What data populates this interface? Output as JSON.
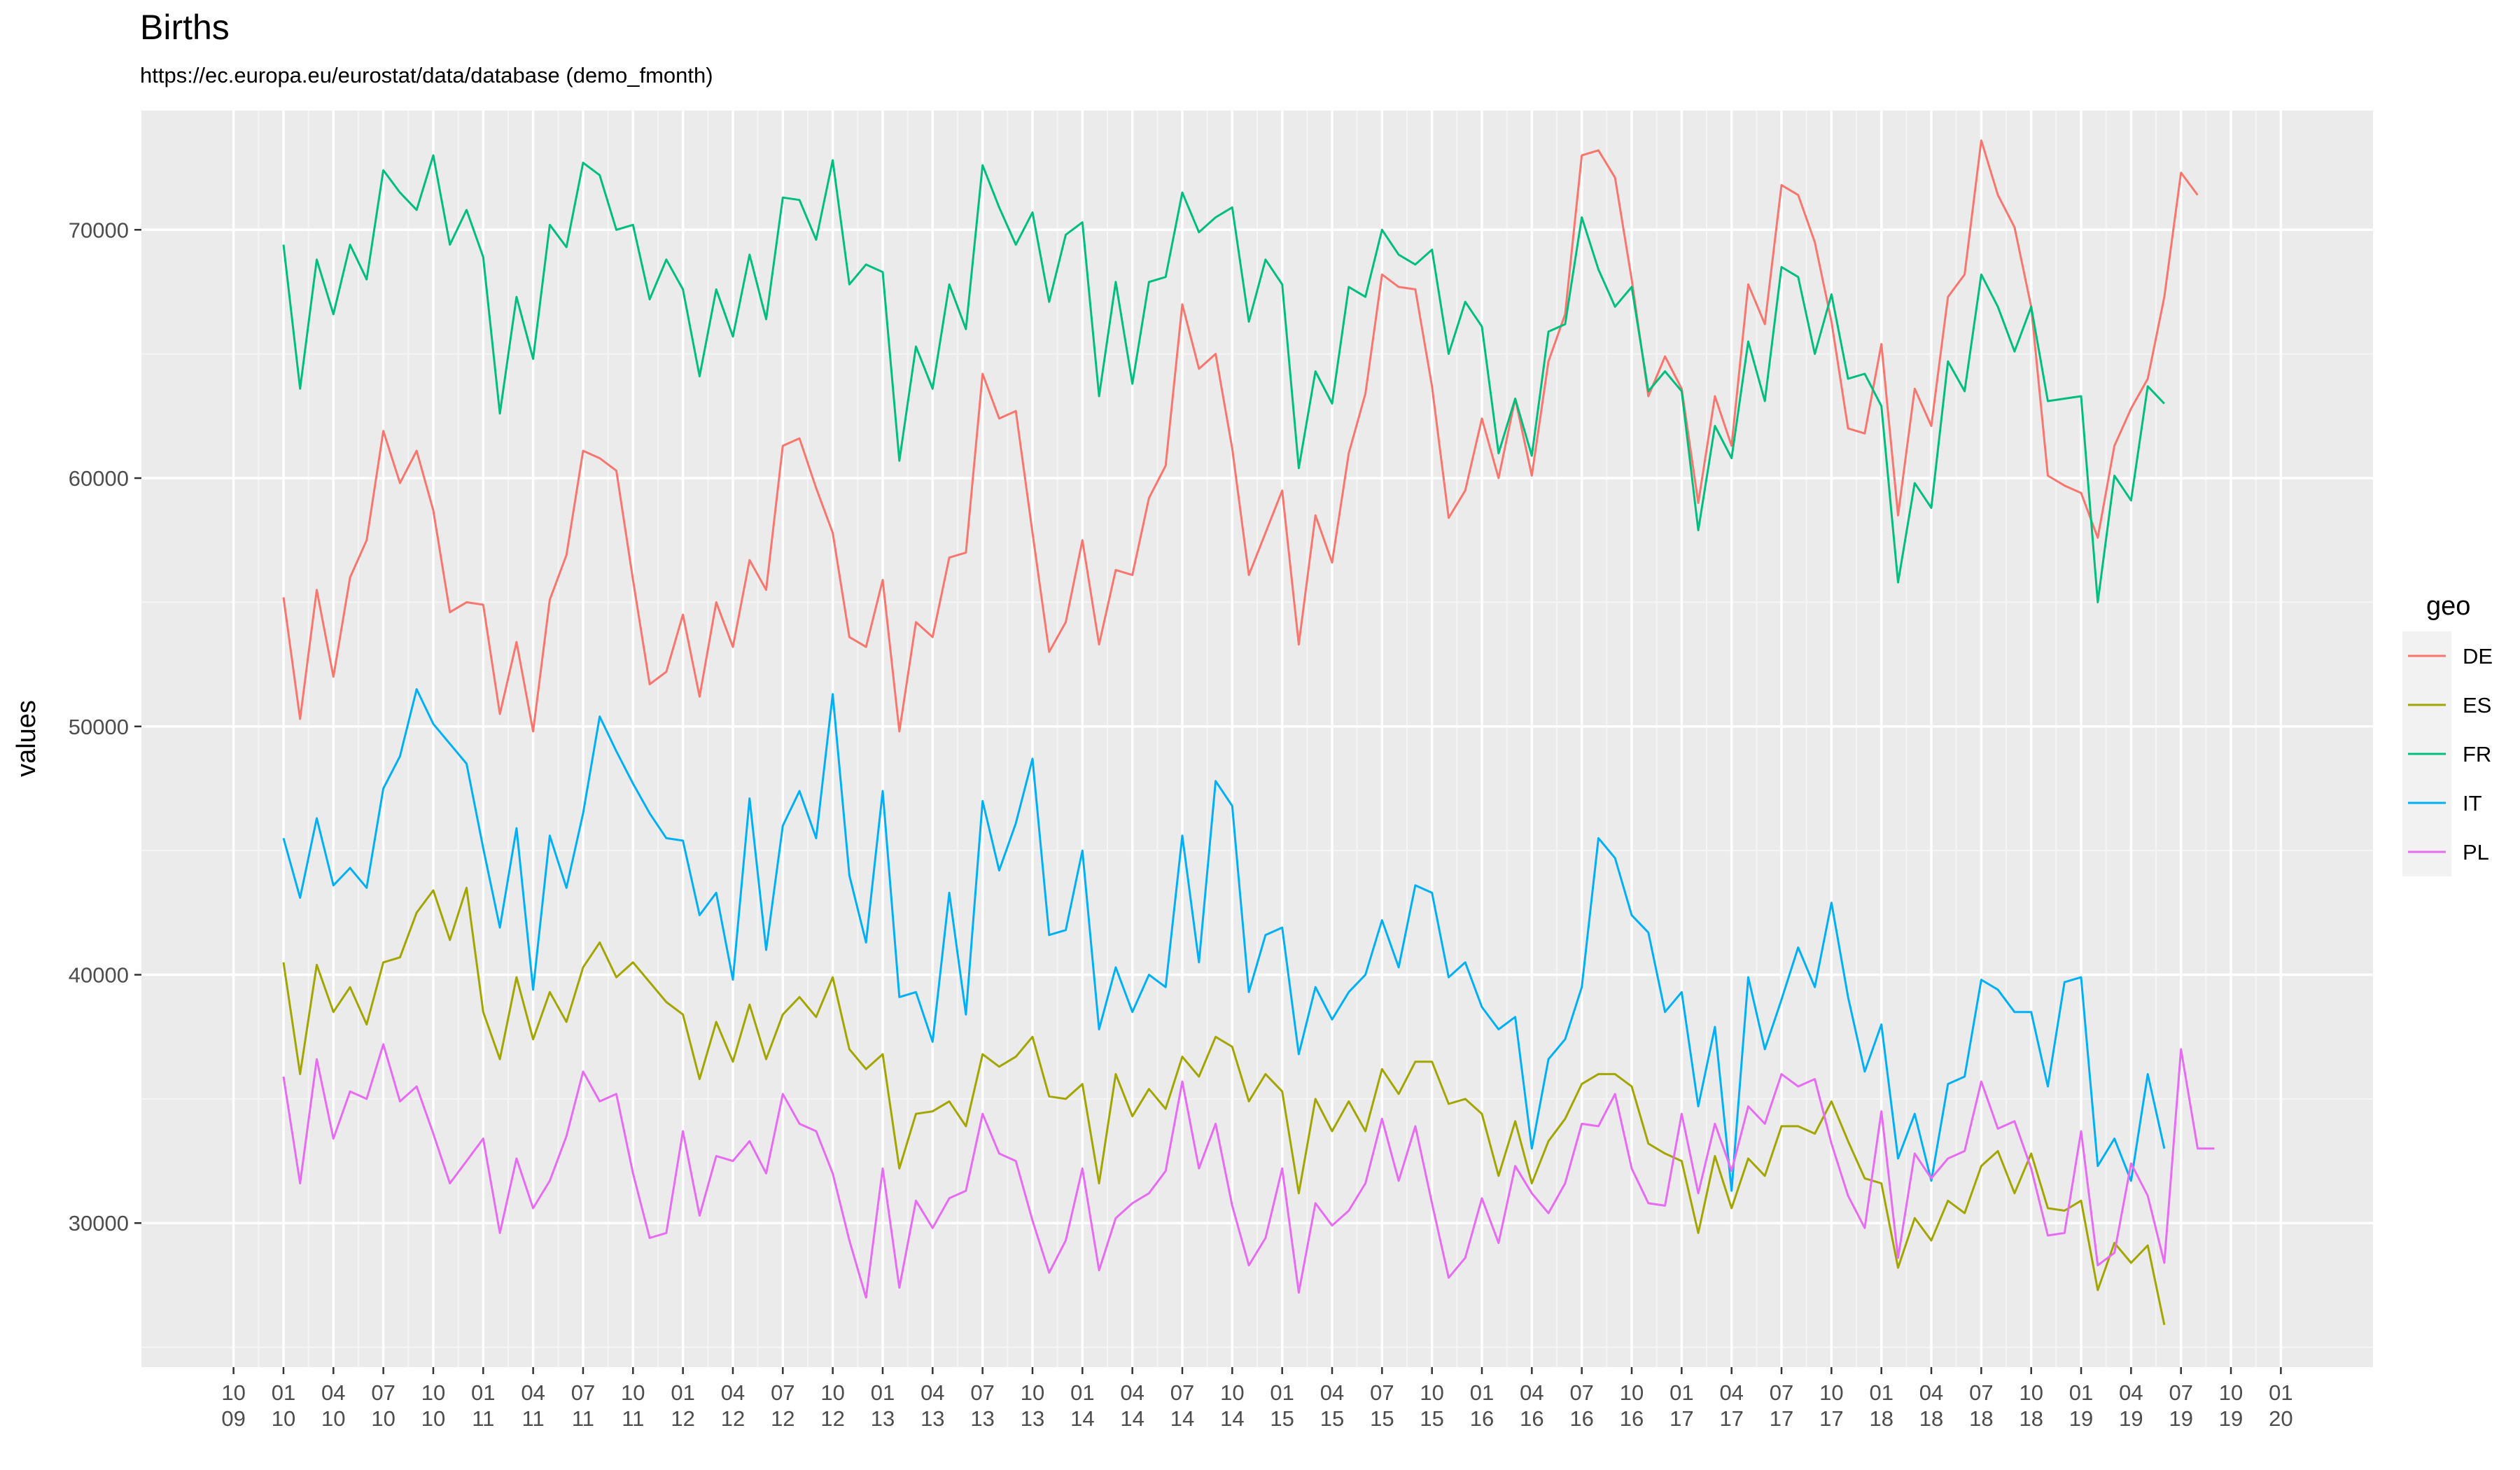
{
  "chart_data": {
    "type": "line",
    "title": "Births",
    "subtitle": "https://ec.europa.eu/eurostat/data/database (demo_fmonth)",
    "xlabel": "",
    "ylabel": "values",
    "ylim": [
      24200,
      74800
    ],
    "y_ticks": [
      30000,
      40000,
      50000,
      60000,
      70000
    ],
    "x_start": "2009-10",
    "x_end": "2020-01",
    "x_ticks": [
      {
        "top": "10",
        "bottom": "09"
      },
      {
        "top": "01",
        "bottom": "10"
      },
      {
        "top": "04",
        "bottom": "10"
      },
      {
        "top": "07",
        "bottom": "10"
      },
      {
        "top": "10",
        "bottom": "10"
      },
      {
        "top": "01",
        "bottom": "11"
      },
      {
        "top": "04",
        "bottom": "11"
      },
      {
        "top": "07",
        "bottom": "11"
      },
      {
        "top": "10",
        "bottom": "11"
      },
      {
        "top": "01",
        "bottom": "12"
      },
      {
        "top": "04",
        "bottom": "12"
      },
      {
        "top": "07",
        "bottom": "12"
      },
      {
        "top": "10",
        "bottom": "12"
      },
      {
        "top": "01",
        "bottom": "13"
      },
      {
        "top": "04",
        "bottom": "13"
      },
      {
        "top": "07",
        "bottom": "13"
      },
      {
        "top": "10",
        "bottom": "13"
      },
      {
        "top": "01",
        "bottom": "14"
      },
      {
        "top": "04",
        "bottom": "14"
      },
      {
        "top": "07",
        "bottom": "14"
      },
      {
        "top": "10",
        "bottom": "14"
      },
      {
        "top": "01",
        "bottom": "15"
      },
      {
        "top": "04",
        "bottom": "15"
      },
      {
        "top": "07",
        "bottom": "15"
      },
      {
        "top": "10",
        "bottom": "15"
      },
      {
        "top": "01",
        "bottom": "16"
      },
      {
        "top": "04",
        "bottom": "16"
      },
      {
        "top": "07",
        "bottom": "16"
      },
      {
        "top": "10",
        "bottom": "16"
      },
      {
        "top": "01",
        "bottom": "17"
      },
      {
        "top": "04",
        "bottom": "17"
      },
      {
        "top": "07",
        "bottom": "17"
      },
      {
        "top": "10",
        "bottom": "17"
      },
      {
        "top": "01",
        "bottom": "18"
      },
      {
        "top": "04",
        "bottom": "18"
      },
      {
        "top": "07",
        "bottom": "18"
      },
      {
        "top": "10",
        "bottom": "18"
      },
      {
        "top": "01",
        "bottom": "19"
      },
      {
        "top": "04",
        "bottom": "19"
      },
      {
        "top": "07",
        "bottom": "19"
      },
      {
        "top": "10",
        "bottom": "19"
      },
      {
        "top": "01",
        "bottom": "20"
      }
    ],
    "grid": true,
    "legend": {
      "title": "geo",
      "position": "right"
    },
    "series": [
      {
        "name": "DE",
        "color": "#F8766D",
        "start": "2010-01",
        "values": [
          55200,
          50300,
          55500,
          52000,
          56000,
          57500,
          61900,
          59800,
          61100,
          58700,
          54600,
          55000,
          54900,
          50500,
          53400,
          49800,
          55100,
          56900,
          61100,
          60800,
          60300,
          55900,
          51700,
          52200,
          54500,
          51200,
          55000,
          53200,
          56700,
          55500,
          61300,
          61600,
          59600,
          57800,
          53600,
          53200,
          55900,
          49800,
          54200,
          53600,
          56800,
          57000,
          64200,
          62400,
          62700,
          57800,
          53000,
          54200,
          57500,
          53300,
          56300,
          56100,
          59200,
          60500,
          67000,
          64400,
          65000,
          61200,
          56100,
          57800,
          59500,
          53300,
          58500,
          56600,
          61000,
          63400,
          68200,
          67700,
          67600,
          63700,
          58400,
          59500,
          62400,
          60000,
          63200,
          60100,
          64700,
          66600,
          73000,
          73200,
          72100,
          68000,
          63300,
          64900,
          63600,
          59000,
          63300,
          61300,
          67800,
          66200,
          71800,
          71400,
          69500,
          66300,
          62000,
          61800,
          65400,
          58500,
          63600,
          62100,
          67300,
          68200,
          73600,
          71400,
          70100,
          66900,
          60100,
          59700,
          59400,
          57600,
          61300,
          62800,
          64000,
          67300,
          72300,
          71400
        ]
      },
      {
        "name": "ES",
        "color": "#A3A500",
        "start": "2010-01",
        "values": [
          40500,
          36000,
          40400,
          38500,
          39500,
          38000,
          40500,
          40700,
          42500,
          43400,
          41400,
          43500,
          38500,
          36600,
          39900,
          37400,
          39300,
          38100,
          40300,
          41300,
          39900,
          40500,
          39700,
          38900,
          38400,
          35800,
          38100,
          36500,
          38800,
          36600,
          38400,
          39100,
          38300,
          39900,
          37000,
          36200,
          36800,
          32200,
          34400,
          34500,
          34900,
          33900,
          36800,
          36300,
          36700,
          37500,
          35100,
          35000,
          35600,
          31600,
          36000,
          34300,
          35400,
          34600,
          36700,
          35900,
          37500,
          37100,
          34900,
          36000,
          35300,
          31200,
          35000,
          33700,
          34900,
          33700,
          36200,
          35200,
          36500,
          36500,
          34800,
          35000,
          34400,
          31900,
          34100,
          31600,
          33300,
          34200,
          35600,
          36000,
          36000,
          35500,
          33200,
          32800,
          32500,
          29600,
          32700,
          30600,
          32600,
          31900,
          33900,
          33900,
          33600,
          34900,
          33300,
          31800,
          31600,
          28200,
          30200,
          29300,
          30900,
          30400,
          32300,
          32900,
          31200,
          32800,
          30600,
          30500,
          30900,
          27300,
          29200,
          28400,
          29100,
          25900
        ]
      },
      {
        "name": "FR",
        "color": "#00BF7D",
        "start": "2010-01",
        "values": [
          69400,
          63600,
          68800,
          66600,
          69400,
          68000,
          72400,
          71500,
          70800,
          73000,
          69400,
          70800,
          68900,
          62600,
          67300,
          64800,
          70200,
          69300,
          72700,
          72200,
          70000,
          70200,
          67200,
          68800,
          67600,
          64100,
          67600,
          65700,
          69000,
          66400,
          71300,
          71200,
          69600,
          72800,
          67800,
          68600,
          68300,
          60700,
          65300,
          63600,
          67800,
          66000,
          72600,
          70900,
          69400,
          70700,
          67100,
          69800,
          70300,
          63300,
          67900,
          63800,
          67900,
          68100,
          71500,
          69900,
          70500,
          70900,
          66300,
          68800,
          67800,
          60400,
          64300,
          63000,
          67700,
          67300,
          70000,
          69000,
          68600,
          69200,
          65000,
          67100,
          66100,
          61000,
          63200,
          60900,
          65900,
          66200,
          70500,
          68400,
          66900,
          67700,
          63500,
          64300,
          63500,
          57900,
          62100,
          60800,
          65500,
          63100,
          68500,
          68100,
          65000,
          67400,
          64000,
          64200,
          62900,
          55800,
          59800,
          58800,
          64700,
          63500,
          68200,
          66900,
          65100,
          66900,
          63100,
          63200,
          63300,
          55000,
          60100,
          59100,
          63700,
          63000
        ]
      },
      {
        "name": "IT",
        "color": "#00B0F6",
        "start": "2010-01",
        "values": [
          45500,
          43100,
          46300,
          43600,
          44300,
          43500,
          47500,
          48800,
          51500,
          50100,
          49300,
          48500,
          45100,
          41900,
          45900,
          39400,
          45600,
          43500,
          46500,
          50400,
          49000,
          47700,
          46500,
          45500,
          45400,
          42400,
          43300,
          39800,
          47100,
          41000,
          46000,
          47400,
          45500,
          51300,
          44000,
          41300,
          47400,
          39100,
          39300,
          37300,
          43300,
          38400,
          47000,
          44200,
          46100,
          48700,
          41600,
          41800,
          45000,
          37800,
          40300,
          38500,
          40000,
          39500,
          45600,
          40500,
          47800,
          46800,
          39300,
          41600,
          41900,
          36800,
          39500,
          38200,
          39300,
          40000,
          42200,
          40300,
          43600,
          43300,
          39900,
          40500,
          38700,
          37800,
          38300,
          33000,
          36600,
          37400,
          39500,
          45500,
          44700,
          42400,
          41700,
          38500,
          39300,
          34700,
          37900,
          31300,
          39900,
          37000,
          39000,
          41100,
          39500,
          42900,
          39100,
          36100,
          38000,
          32600,
          34400,
          31700,
          35600,
          35900,
          39800,
          39400,
          38500,
          38500,
          35500,
          39700,
          39900,
          32300,
          33400,
          31700,
          36000,
          33000
        ]
      },
      {
        "name": "PL",
        "color": "#E76BF3",
        "start": "2010-01",
        "values": [
          35900,
          31600,
          36600,
          33400,
          35300,
          35000,
          37200,
          34900,
          35500,
          33600,
          31600,
          32500,
          33400,
          29600,
          32600,
          30600,
          31700,
          33500,
          36100,
          34900,
          35200,
          32000,
          29400,
          29600,
          33700,
          30300,
          32700,
          32500,
          33300,
          32000,
          35200,
          34000,
          33700,
          32000,
          29300,
          27000,
          32200,
          27400,
          30900,
          29800,
          31000,
          31300,
          34400,
          32800,
          32500,
          30100,
          28000,
          29300,
          32200,
          28100,
          30200,
          30800,
          31200,
          32100,
          35700,
          32200,
          34000,
          30700,
          28300,
          29400,
          32200,
          27200,
          30800,
          29900,
          30500,
          31600,
          34200,
          31700,
          33900,
          30800,
          27800,
          28600,
          31000,
          29200,
          32300,
          31200,
          30400,
          31600,
          34000,
          33900,
          35200,
          32200,
          30800,
          30700,
          34400,
          31200,
          34000,
          32100,
          34700,
          34000,
          36000,
          35500,
          35800,
          33200,
          31100,
          29800,
          34500,
          28600,
          32800,
          31800,
          32600,
          32900,
          35700,
          33800,
          34100,
          32200,
          29500,
          29600,
          33700,
          28300,
          28800,
          32400,
          31100,
          28400,
          37000,
          33000,
          33000
        ]
      }
    ]
  }
}
